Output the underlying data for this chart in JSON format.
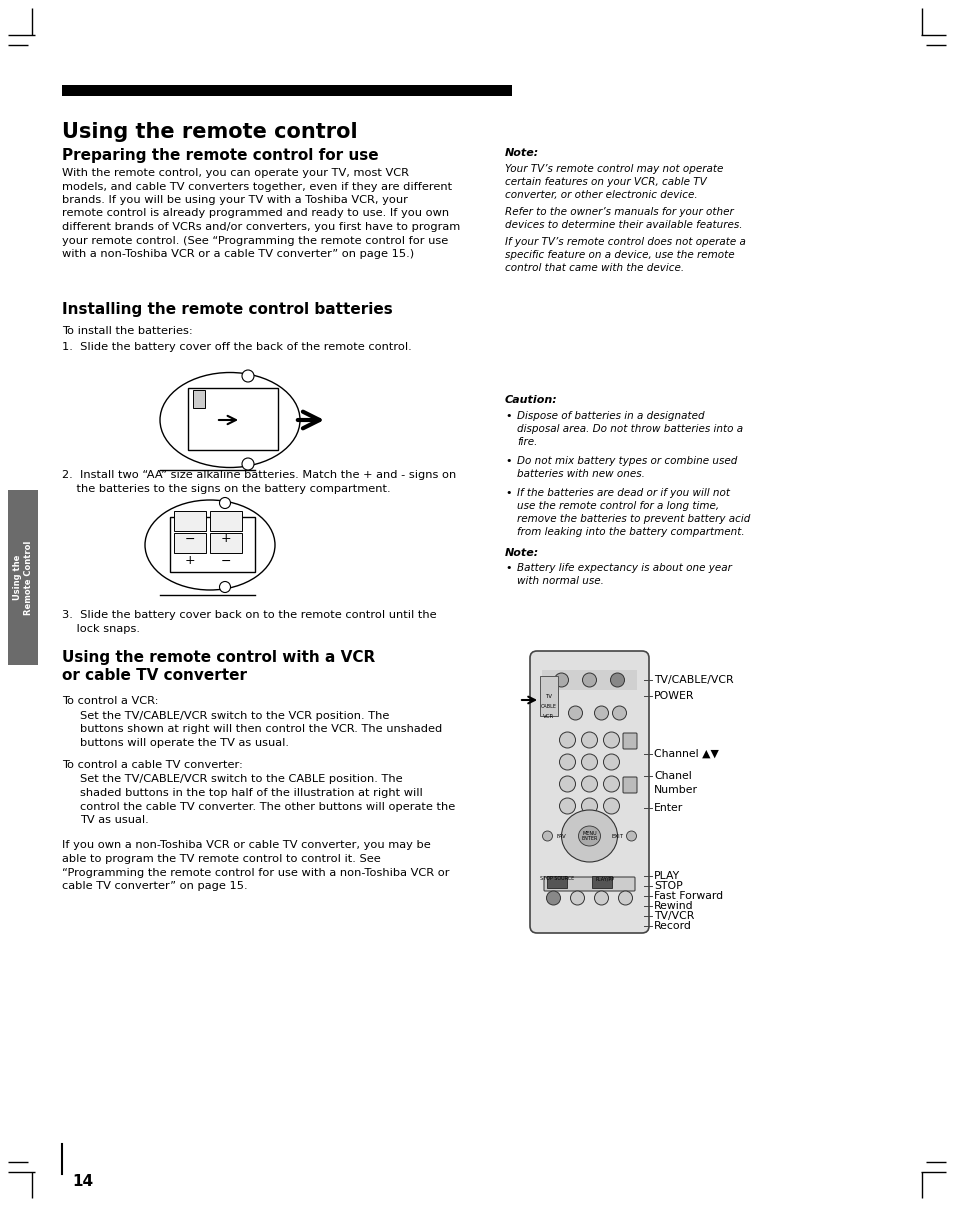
{
  "bg_color": "#ffffff",
  "page_num": "14",
  "main_title": "Using the remote control",
  "section1_title": "Preparing the remote control for use",
  "section1_body_lines": [
    "With the remote control, you can operate your TV, most VCR",
    "models, and cable TV converters together, even if they are different",
    "brands. If you will be using your TV with a Toshiba VCR, your",
    "remote control is already programmed and ready to use. If you own",
    "different brands of VCRs and/or converters, you first have to program",
    "your remote control. (See “Programming the remote control for use",
    "with a non-Toshiba VCR or a cable TV converter” on page 15.)"
  ],
  "note_title": "Note:",
  "note1_lines": [
    "Your TV’s remote control may not operate",
    "certain features on your VCR, cable TV",
    "converter, or other electronic device."
  ],
  "note2_lines": [
    "Refer to the owner’s manuals for your other",
    "devices to determine their available features."
  ],
  "note3_lines": [
    "If your TV’s remote control does not operate a",
    "specific feature on a device, use the remote",
    "control that came with the device."
  ],
  "section2_title": "Installing the remote control batteries",
  "install_intro": "To install the batteries:",
  "step1": "1.  Slide the battery cover off the back of the remote control.",
  "step2a": "2.  Install two “AA” size alkaline batteries. Match the + and - signs on",
  "step2b": "    the batteries to the signs on the battery compartment.",
  "step3a": "3.  Slide the battery cover back on to the remote control until the",
  "step3b": "    lock snaps.",
  "caution_title": "Caution:",
  "caution1_lines": [
    "Dispose of batteries in a designated",
    "disposal area. Do not throw batteries into a",
    "fire."
  ],
  "caution2_lines": [
    "Do not mix battery types or combine used",
    "batteries with new ones."
  ],
  "caution3_lines": [
    "If the batteries are dead or if you will not",
    "use the remote control for a long time,",
    "remove the batteries to prevent battery acid",
    "from leaking into the battery compartment."
  ],
  "note2_title": "Note:",
  "note2_1_lines": [
    "Battery life expectancy is about one year",
    "with normal use."
  ],
  "section3_title_line1": "Using the remote control with a VCR",
  "section3_title_line2": "or cable TV converter",
  "vcr_intro": "To control a VCR:",
  "vcr_body_lines": [
    "Set the TV/CABLE/VCR switch to the VCR position. The",
    "buttons shown at right will then control the VCR. The unshaded",
    "buttons will operate the TV as usual."
  ],
  "cable_intro": "To control a cable TV converter:",
  "cable_body_lines": [
    "Set the TV/CABLE/VCR switch to the CABLE position. The",
    "shaded buttons in the top half of the illustration at right will",
    "control the cable TV converter. The other buttons will operate the",
    "TV as usual."
  ],
  "extra_body_lines": [
    "If you own a non-Toshiba VCR or cable TV converter, you may be",
    "able to program the TV remote control to control it. See",
    "“Programming the remote control for use with a non-Toshiba VCR or",
    "cable TV converter” on page 15."
  ],
  "remote_labels": [
    "TV/CABLE/VCR",
    "POWER",
    "Channel ▲▼",
    "Chanel",
    "Number",
    "Enter",
    "PLAY",
    "STOP",
    "Fast Forward",
    "Rewind",
    "TV/VCR",
    "Record"
  ],
  "sidebar_text": "Using the\nRemote Control",
  "tab_color": "#6b6b6b",
  "black_color": "#000000",
  "gray_color": "#888888",
  "light_gray": "#cccccc",
  "mid_gray": "#999999"
}
